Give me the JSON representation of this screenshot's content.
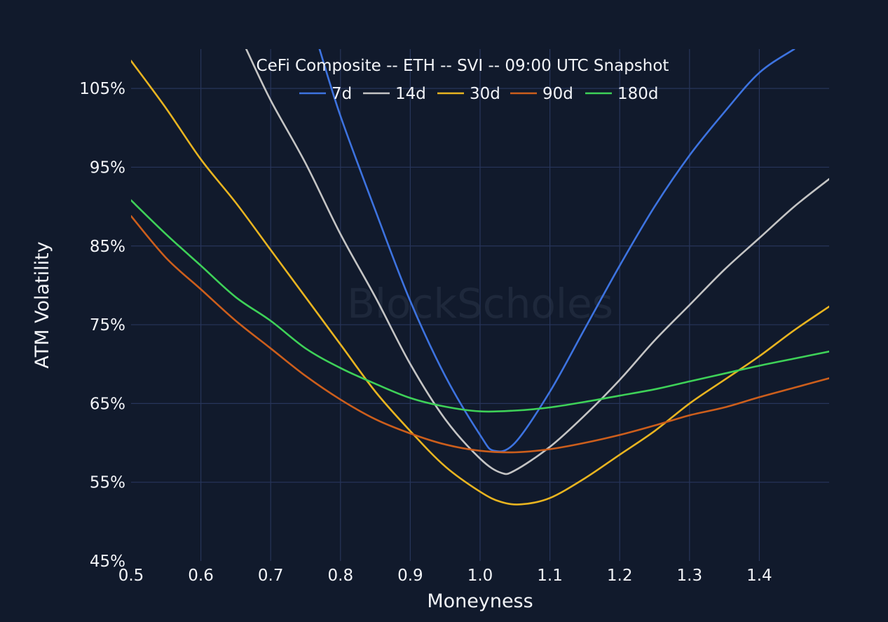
{
  "chart_data": {
    "type": "line",
    "title": "CeFi Composite -- ETH -- SVI -- 09:00 UTC Snapshot",
    "xlabel": "Moneyness",
    "ylabel": "ATM Volatility",
    "watermark": "BlockScholes",
    "xlim": [
      0.5,
      1.5
    ],
    "ylim": [
      45,
      110
    ],
    "x_ticks": [
      0.5,
      0.6,
      0.7,
      0.8,
      0.9,
      1.0,
      1.1,
      1.2,
      1.3,
      1.4
    ],
    "x_tick_labels": [
      "0.5",
      "0.6",
      "0.7",
      "0.8",
      "0.9",
      "1.0",
      "1.1",
      "1.2",
      "1.3",
      "1.4"
    ],
    "y_ticks": [
      45,
      55,
      65,
      75,
      85,
      95,
      105
    ],
    "y_tick_labels": [
      "45%",
      "55%",
      "65%",
      "75%",
      "85%",
      "95%",
      "105%"
    ],
    "grid": true,
    "legend_position": "top-center",
    "series": [
      {
        "name": "7d",
        "color": "#3d73e0",
        "x": [
          0.77,
          0.8,
          0.85,
          0.9,
          0.95,
          1.0,
          1.02,
          1.05,
          1.1,
          1.15,
          1.2,
          1.25,
          1.3,
          1.35,
          1.4,
          1.45
        ],
        "values": [
          110,
          101.5,
          89.5,
          78,
          68.5,
          61,
          59,
          60,
          66.5,
          74.5,
          82.5,
          90,
          96.5,
          102,
          107,
          110
        ]
      },
      {
        "name": "14d",
        "color": "#c4c4c4",
        "x": [
          0.665,
          0.7,
          0.75,
          0.8,
          0.85,
          0.9,
          0.95,
          1.0,
          1.03,
          1.05,
          1.1,
          1.15,
          1.2,
          1.25,
          1.3,
          1.35,
          1.4,
          1.45,
          1.5
        ],
        "values": [
          110,
          103.5,
          95.5,
          86.5,
          78.5,
          70,
          63,
          58,
          56.2,
          56.5,
          59.5,
          63.5,
          68,
          73,
          77.5,
          82,
          86,
          90,
          93.5
        ]
      },
      {
        "name": "30d",
        "color": "#e8b420",
        "x": [
          0.5,
          0.55,
          0.6,
          0.65,
          0.7,
          0.75,
          0.8,
          0.85,
          0.9,
          0.95,
          1.0,
          1.03,
          1.06,
          1.1,
          1.15,
          1.2,
          1.25,
          1.3,
          1.35,
          1.4,
          1.45,
          1.5
        ],
        "values": [
          108.5,
          102.5,
          96,
          90.5,
          84.5,
          78.5,
          72.5,
          66.5,
          61.5,
          57,
          53.8,
          52.5,
          52.2,
          53,
          55.5,
          58.5,
          61.5,
          65,
          68,
          71,
          74.3,
          77.3
        ]
      },
      {
        "name": "90d",
        "color": "#cc5e1c",
        "x": [
          0.5,
          0.55,
          0.6,
          0.65,
          0.7,
          0.75,
          0.8,
          0.85,
          0.9,
          0.95,
          1.0,
          1.05,
          1.1,
          1.15,
          1.2,
          1.25,
          1.3,
          1.35,
          1.4,
          1.45,
          1.5
        ],
        "values": [
          88.8,
          83.5,
          79.5,
          75.5,
          72,
          68.5,
          65.5,
          63,
          61.2,
          59.8,
          59,
          58.8,
          59.2,
          60,
          61,
          62.2,
          63.5,
          64.5,
          65.8,
          67,
          68.2
        ]
      },
      {
        "name": "180d",
        "color": "#3ed158",
        "x": [
          0.5,
          0.55,
          0.6,
          0.65,
          0.7,
          0.75,
          0.8,
          0.85,
          0.9,
          0.95,
          1.0,
          1.05,
          1.1,
          1.15,
          1.2,
          1.25,
          1.3,
          1.35,
          1.4,
          1.45,
          1.5
        ],
        "values": [
          90.8,
          86.5,
          82.5,
          78.5,
          75.5,
          72,
          69.5,
          67.5,
          65.7,
          64.6,
          64,
          64.1,
          64.5,
          65.2,
          66,
          66.8,
          67.8,
          68.8,
          69.8,
          70.7,
          71.6
        ]
      }
    ]
  }
}
